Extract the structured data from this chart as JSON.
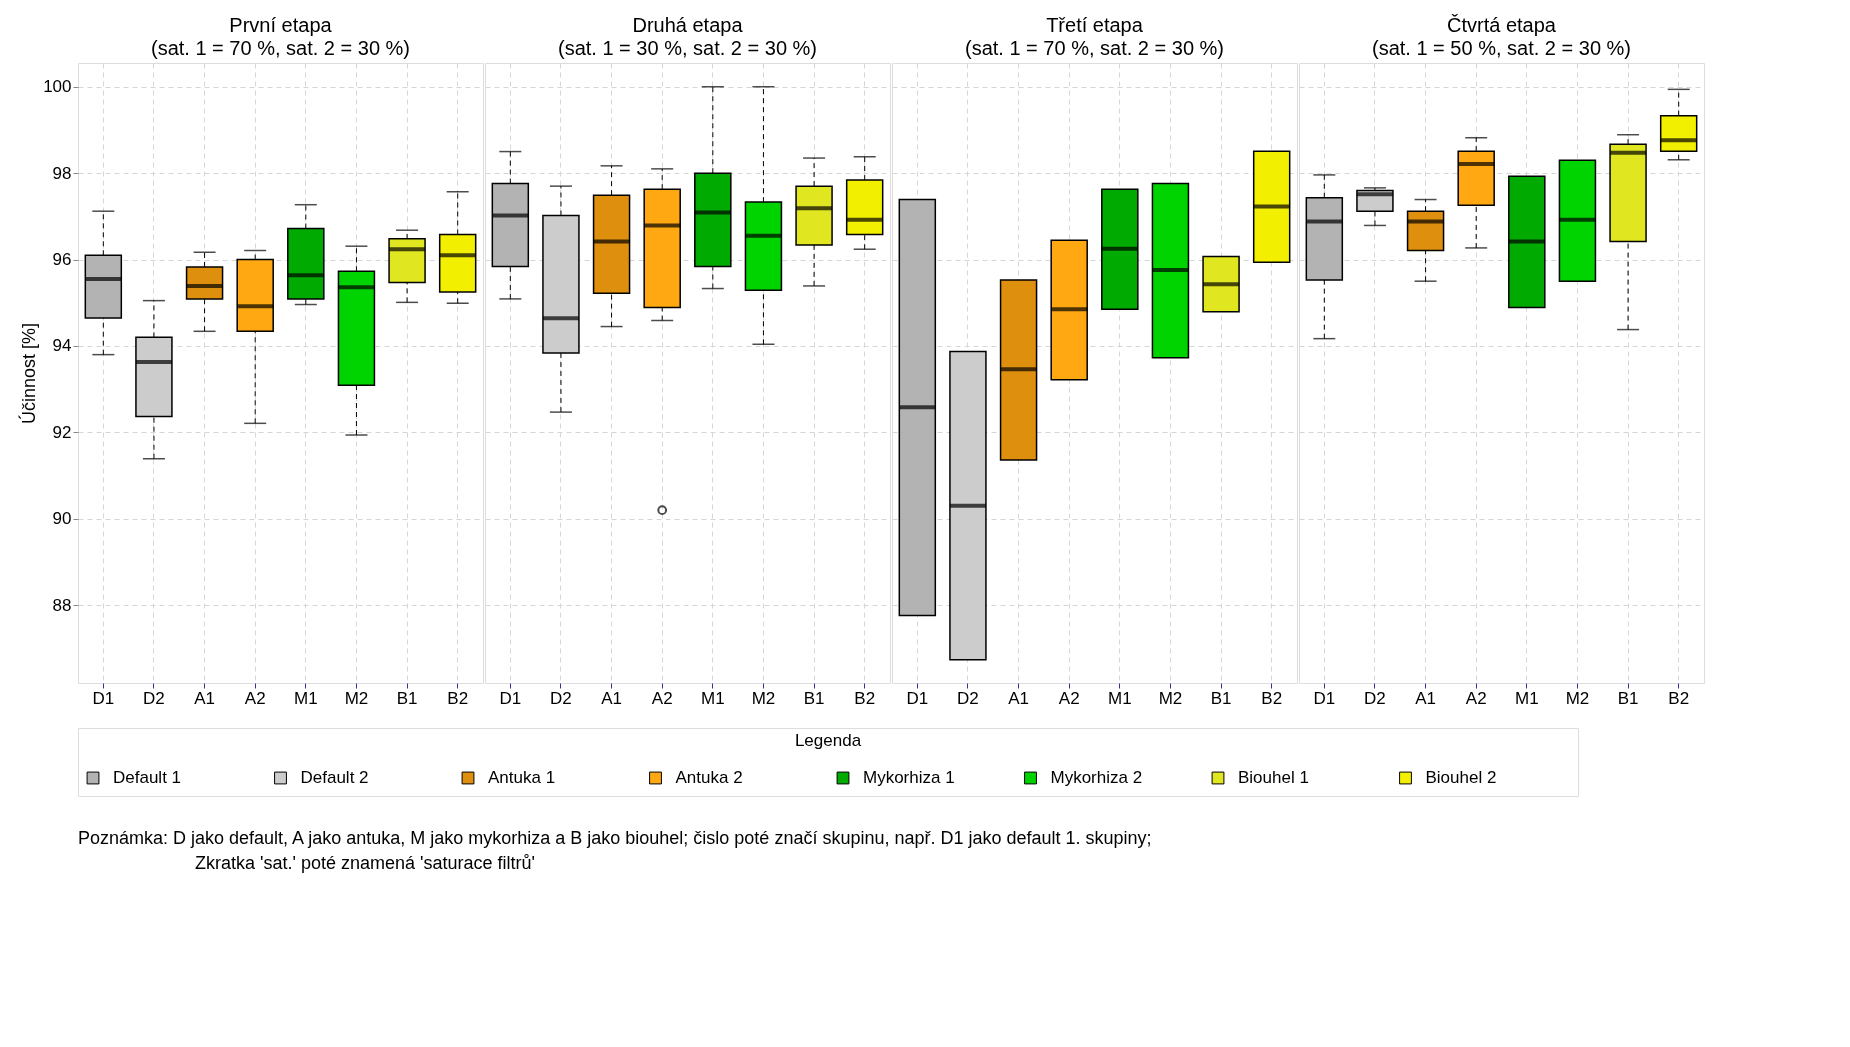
{
  "chart_data": [
    {
      "type": "box",
      "title": "První etapa",
      "subtitle": "(sat. 1 = 70 %, sat. 2 = 30 %)",
      "ylabel": "Účinnost [%]",
      "legend_title": "Legenda",
      "legend": "bottom",
      "grid": true,
      "ylim": [
        86.2,
        100.55
      ],
      "yticks": [
        88,
        90,
        92,
        94,
        96,
        98,
        100
      ],
      "categories": [
        "D1",
        "D2",
        "A1",
        "A2",
        "M1",
        "M2",
        "B1",
        "B2"
      ],
      "annotations": [
        "Poznámka: D jako default, A jako antuka, M jako mykorhiza a B jako biouhel; čislo poté značí skupinu, např. D1 jako default 1. skupiny;",
        "Zkratka 'sat.' poté znamená 'saturace filtrů'"
      ],
      "series": [
        {
          "name": "Default 1",
          "color": "#b3b3b3",
          "x": [
            "D1"
          ],
          "boxes": [
            {
              "low": 93.8,
              "q1": 94.65,
              "median": 95.55,
              "q3": 96.1,
              "high": 97.12
            }
          ]
        },
        {
          "name": "Default 2",
          "color": "#cccccc",
          "x": [
            "D2"
          ],
          "boxes": [
            {
              "low": 91.39,
              "q1": 92.37,
              "median": 93.63,
              "q3": 94.2,
              "high": 95.05
            }
          ]
        },
        {
          "name": "Antuka 1",
          "color": "#df8f0e",
          "x": [
            "A1"
          ],
          "boxes": [
            {
              "low": 94.34,
              "q1": 95.09,
              "median": 95.39,
              "q3": 95.83,
              "high": 96.17
            }
          ]
        },
        {
          "name": "Antuka 2",
          "color": "#ffa811",
          "x": [
            "A2"
          ],
          "boxes": [
            {
              "low": 92.21,
              "q1": 94.34,
              "median": 94.92,
              "q3": 96.0,
              "high": 96.21
            }
          ]
        },
        {
          "name": "Mykorhiza 1",
          "color": "#00aa00",
          "x": [
            "M1"
          ],
          "boxes": [
            {
              "low": 94.96,
              "q1": 95.09,
              "median": 95.64,
              "q3": 96.72,
              "high": 97.27
            }
          ]
        },
        {
          "name": "Mykorhiza 2",
          "color": "#00d400",
          "x": [
            "M2"
          ],
          "boxes": [
            {
              "low": 91.94,
              "q1": 93.09,
              "median": 95.36,
              "q3": 95.73,
              "high": 96.31
            }
          ]
        },
        {
          "name": "Biouhel 1",
          "color": "#e0e620",
          "x": [
            "B1"
          ],
          "boxes": [
            {
              "low": 95.01,
              "q1": 95.47,
              "median": 96.24,
              "q3": 96.48,
              "high": 96.68
            }
          ]
        },
        {
          "name": "Biouhel 2",
          "color": "#f3ef00",
          "x": [
            "B2"
          ],
          "boxes": [
            {
              "low": 94.99,
              "q1": 95.25,
              "median": 96.1,
              "q3": 96.58,
              "high": 97.57
            }
          ]
        }
      ]
    },
    {
      "type": "box",
      "title": "Druhá etapa",
      "subtitle": "(sat. 1 = 30 %, sat. 2 = 30 %)",
      "grid": true,
      "tick_labels": "x",
      "ylim": [
        86.2,
        100.55
      ],
      "yticks": [
        88,
        90,
        92,
        94,
        96,
        98,
        100
      ],
      "categories": [
        "D1",
        "D2",
        "A1",
        "A2",
        "M1",
        "M2",
        "B1",
        "B2"
      ],
      "series": [
        {
          "name": "Default 1",
          "color": "#b3b3b3",
          "x": [
            "D1"
          ],
          "boxes": [
            {
              "low": 95.09,
              "q1": 95.84,
              "median": 97.02,
              "q3": 97.76,
              "high": 98.5
            }
          ]
        },
        {
          "name": "Default 2",
          "color": "#cccccc",
          "x": [
            "D2"
          ],
          "boxes": [
            {
              "low": 92.47,
              "q1": 93.84,
              "median": 94.64,
              "q3": 97.02,
              "high": 97.7
            }
          ]
        },
        {
          "name": "Antuka 1",
          "color": "#df8f0e",
          "x": [
            "A1"
          ],
          "boxes": [
            {
              "low": 94.45,
              "q1": 95.22,
              "median": 96.42,
              "q3": 97.49,
              "high": 98.17
            }
          ]
        },
        {
          "name": "Antuka 2",
          "color": "#ffa811",
          "x": [
            "A2"
          ],
          "boxes": [
            {
              "low": 94.59,
              "q1": 94.89,
              "median": 96.79,
              "q3": 97.63,
              "high": 98.1,
              "outliers": [
                90.2
              ]
            }
          ]
        },
        {
          "name": "Mykorhiza 1",
          "color": "#00aa00",
          "x": [
            "M1"
          ],
          "boxes": [
            {
              "low": 95.33,
              "q1": 95.84,
              "median": 97.09,
              "q3": 98.0,
              "high": 100
            }
          ]
        },
        {
          "name": "Mykorhiza 2",
          "color": "#00d400",
          "x": [
            "M2"
          ],
          "boxes": [
            {
              "low": 94.04,
              "q1": 95.29,
              "median": 96.55,
              "q3": 97.33,
              "high": 100
            }
          ]
        },
        {
          "name": "Biouhel 1",
          "color": "#e0e620",
          "x": [
            "B1"
          ],
          "boxes": [
            {
              "low": 95.39,
              "q1": 96.34,
              "median": 97.19,
              "q3": 97.7,
              "high": 98.35
            }
          ]
        },
        {
          "name": "Biouhel 2",
          "color": "#f3ef00",
          "x": [
            "B2"
          ],
          "boxes": [
            {
              "low": 96.24,
              "q1": 96.58,
              "median": 96.92,
              "q3": 97.84,
              "high": 98.38
            }
          ]
        }
      ]
    },
    {
      "type": "box",
      "title": "Třetí etapa",
      "subtitle": "(sat. 1 = 70 %, sat. 2 = 30 %)",
      "grid": true,
      "tick_labels": "x",
      "ylim": [
        86.2,
        100.55
      ],
      "yticks": [
        88,
        90,
        92,
        94,
        96,
        98,
        100
      ],
      "categories": [
        "D1",
        "D2",
        "A1",
        "A2",
        "M1",
        "M2",
        "B1",
        "B2"
      ],
      "series": [
        {
          "name": "Default 1",
          "color": "#b3b3b3",
          "x": [
            "D1"
          ],
          "boxes": [
            {
              "low": 87.76,
              "q1": 87.76,
              "median": 92.58,
              "q3": 97.39,
              "high": 97.39
            }
          ]
        },
        {
          "name": "Default 2",
          "color": "#cccccc",
          "x": [
            "D2"
          ],
          "boxes": [
            {
              "low": 86.74,
              "q1": 86.74,
              "median": 90.3,
              "q3": 93.87,
              "high": 93.87
            }
          ]
        },
        {
          "name": "Antuka 1",
          "color": "#df8f0e",
          "x": [
            "A1"
          ],
          "boxes": [
            {
              "low": 91.36,
              "q1": 91.36,
              "median": 93.46,
              "q3": 95.53,
              "high": 95.53
            }
          ]
        },
        {
          "name": "Antuka 2",
          "color": "#ffa811",
          "x": [
            "A2"
          ],
          "boxes": [
            {
              "low": 93.22,
              "q1": 93.22,
              "median": 94.85,
              "q3": 96.45,
              "high": 96.45
            }
          ]
        },
        {
          "name": "Mykorhiza 1",
          "color": "#00aa00",
          "x": [
            "M1"
          ],
          "boxes": [
            {
              "low": 94.85,
              "q1": 94.85,
              "median": 96.25,
              "q3": 97.63,
              "high": 97.63
            }
          ]
        },
        {
          "name": "Mykorhiza 2",
          "color": "#00d400",
          "x": [
            "M2"
          ],
          "boxes": [
            {
              "low": 93.73,
              "q1": 93.73,
              "median": 95.76,
              "q3": 97.76,
              "high": 97.76
            }
          ]
        },
        {
          "name": "Biouhel 1",
          "color": "#e0e620",
          "x": [
            "B1"
          ],
          "boxes": [
            {
              "low": 94.79,
              "q1": 94.79,
              "median": 95.43,
              "q3": 96.07,
              "high": 96.07
            }
          ]
        },
        {
          "name": "Biouhel 2",
          "color": "#f3ef00",
          "x": [
            "B2"
          ],
          "boxes": [
            {
              "low": 95.94,
              "q1": 95.94,
              "median": 97.23,
              "q3": 98.51,
              "high": 98.51
            }
          ]
        }
      ]
    },
    {
      "type": "box",
      "title": "Čtvrtá etapa",
      "subtitle": "(sat. 1 = 50 %, sat. 2 = 30 %)",
      "grid": true,
      "tick_labels": "x",
      "ylim": [
        86.2,
        100.55
      ],
      "yticks": [
        88,
        90,
        92,
        94,
        96,
        98,
        100
      ],
      "categories": [
        "D1",
        "D2",
        "A1",
        "A2",
        "M1",
        "M2",
        "B1",
        "B2"
      ],
      "series": [
        {
          "name": "Default 1",
          "color": "#b3b3b3",
          "x": [
            "D1"
          ],
          "boxes": [
            {
              "low": 94.17,
              "q1": 95.53,
              "median": 96.88,
              "q3": 97.43,
              "high": 97.96
            }
          ]
        },
        {
          "name": "Default 2",
          "color": "#cccccc",
          "x": [
            "D2"
          ],
          "boxes": [
            {
              "low": 96.79,
              "q1": 97.12,
              "median": 97.51,
              "q3": 97.6,
              "high": 97.66
            }
          ]
        },
        {
          "name": "Antuka 1",
          "color": "#df8f0e",
          "x": [
            "A1"
          ],
          "boxes": [
            {
              "low": 95.5,
              "q1": 96.21,
              "median": 96.88,
              "q3": 97.12,
              "high": 97.39
            }
          ]
        },
        {
          "name": "Antuka 2",
          "color": "#ffa811",
          "x": [
            "A2"
          ],
          "boxes": [
            {
              "low": 96.27,
              "q1": 97.26,
              "median": 98.21,
              "q3": 98.51,
              "high": 98.82
            }
          ]
        },
        {
          "name": "Mykorhiza 1",
          "color": "#00aa00",
          "x": [
            "M1"
          ],
          "boxes": [
            {
              "low": 94.89,
              "q1": 94.89,
              "median": 96.42,
              "q3": 97.93,
              "high": 97.93
            }
          ]
        },
        {
          "name": "Mykorhiza 2",
          "color": "#00d400",
          "x": [
            "M2"
          ],
          "boxes": [
            {
              "low": 95.5,
              "q1": 95.5,
              "median": 96.92,
              "q3": 98.3,
              "high": 98.3
            }
          ]
        },
        {
          "name": "Biouhel 1",
          "color": "#e0e620",
          "x": [
            "B1"
          ],
          "boxes": [
            {
              "low": 94.38,
              "q1": 96.42,
              "median": 98.47,
              "q3": 98.67,
              "high": 98.89
            }
          ]
        },
        {
          "name": "Biouhel 2",
          "color": "#f3ef00",
          "x": [
            "B2"
          ],
          "boxes": [
            {
              "low": 98.31,
              "q1": 98.51,
              "median": 98.76,
              "q3": 99.33,
              "high": 99.94
            }
          ]
        }
      ]
    }
  ]
}
